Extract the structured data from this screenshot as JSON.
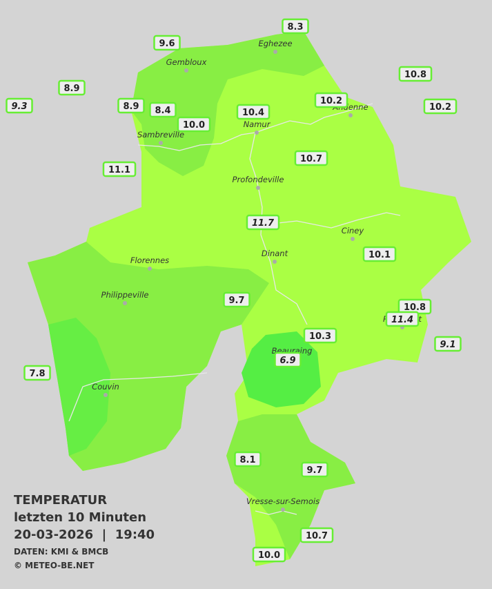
{
  "header": {
    "title": "TEMPERATUR",
    "subtitle": "letzten 10 Minuten",
    "datetime": "20-03-2026  |  19:40",
    "source": "DATEN: KMI & BMCB",
    "copyright": "© METEO-BE.NET"
  },
  "towns": [
    "Eghezee",
    "Gembloux",
    "Andenne",
    "Namur",
    "Sambreville",
    "Profondeville",
    "Ciney",
    "Dinant",
    "Florennes",
    "Philippeville",
    "Rochefort",
    "Beauraing",
    "Couvin",
    "Vresse-sur-Semois"
  ],
  "stations": [
    {
      "value": "9.6",
      "italic": false
    },
    {
      "value": "8.3",
      "italic": false
    },
    {
      "value": "8.9",
      "italic": false
    },
    {
      "value": "9.3",
      "italic": true
    },
    {
      "value": "8.9",
      "italic": false
    },
    {
      "value": "8.4",
      "italic": false
    },
    {
      "value": "10.0",
      "italic": false
    },
    {
      "value": "10.4",
      "italic": false
    },
    {
      "value": "10.2",
      "italic": false
    },
    {
      "value": "10.8",
      "italic": false
    },
    {
      "value": "10.2",
      "italic": false
    },
    {
      "value": "10.7",
      "italic": false
    },
    {
      "value": "11.1",
      "italic": false
    },
    {
      "value": "11.7",
      "italic": true
    },
    {
      "value": "10.1",
      "italic": false
    },
    {
      "value": "9.7",
      "italic": false
    },
    {
      "value": "10.8",
      "italic": false
    },
    {
      "value": "11.4",
      "italic": true
    },
    {
      "value": "10.3",
      "italic": false
    },
    {
      "value": "9.1",
      "italic": true
    },
    {
      "value": "6.9",
      "italic": true
    },
    {
      "value": "7.8",
      "italic": false
    },
    {
      "value": "8.1",
      "italic": false
    },
    {
      "value": "9.7",
      "italic": false
    },
    {
      "value": "10.7",
      "italic": false
    },
    {
      "value": "10.0",
      "italic": false
    }
  ]
}
